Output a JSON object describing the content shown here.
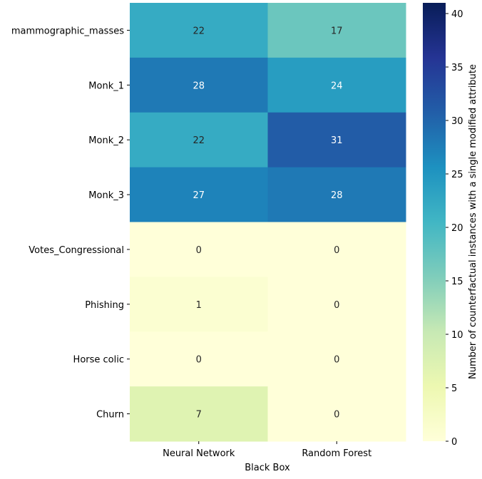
{
  "chart_data": {
    "type": "heatmap",
    "title": "",
    "xlabel": "Black Box",
    "ylabel": "",
    "x_categories": [
      "Neural Network",
      "Random Forest"
    ],
    "y_categories": [
      "mammographic_masses",
      "Monk_1",
      "Monk_2",
      "Monk_3",
      "Votes_Congressional",
      "Phishing",
      "Horse colic",
      "Churn"
    ],
    "values": [
      [
        22,
        17
      ],
      [
        28,
        24
      ],
      [
        22,
        31
      ],
      [
        27,
        28
      ],
      [
        0,
        0
      ],
      [
        1,
        0
      ],
      [
        0,
        0
      ],
      [
        7,
        0
      ]
    ],
    "annotations": true,
    "colormap": "YlGnBu",
    "colorbar": {
      "label": "Number of counterfactual instances with a single modified attribute",
      "range": [
        0,
        41
      ],
      "ticks": [
        0,
        5,
        10,
        15,
        20,
        25,
        30,
        35,
        40
      ]
    },
    "grid": false,
    "legend": "colorbar-right"
  }
}
